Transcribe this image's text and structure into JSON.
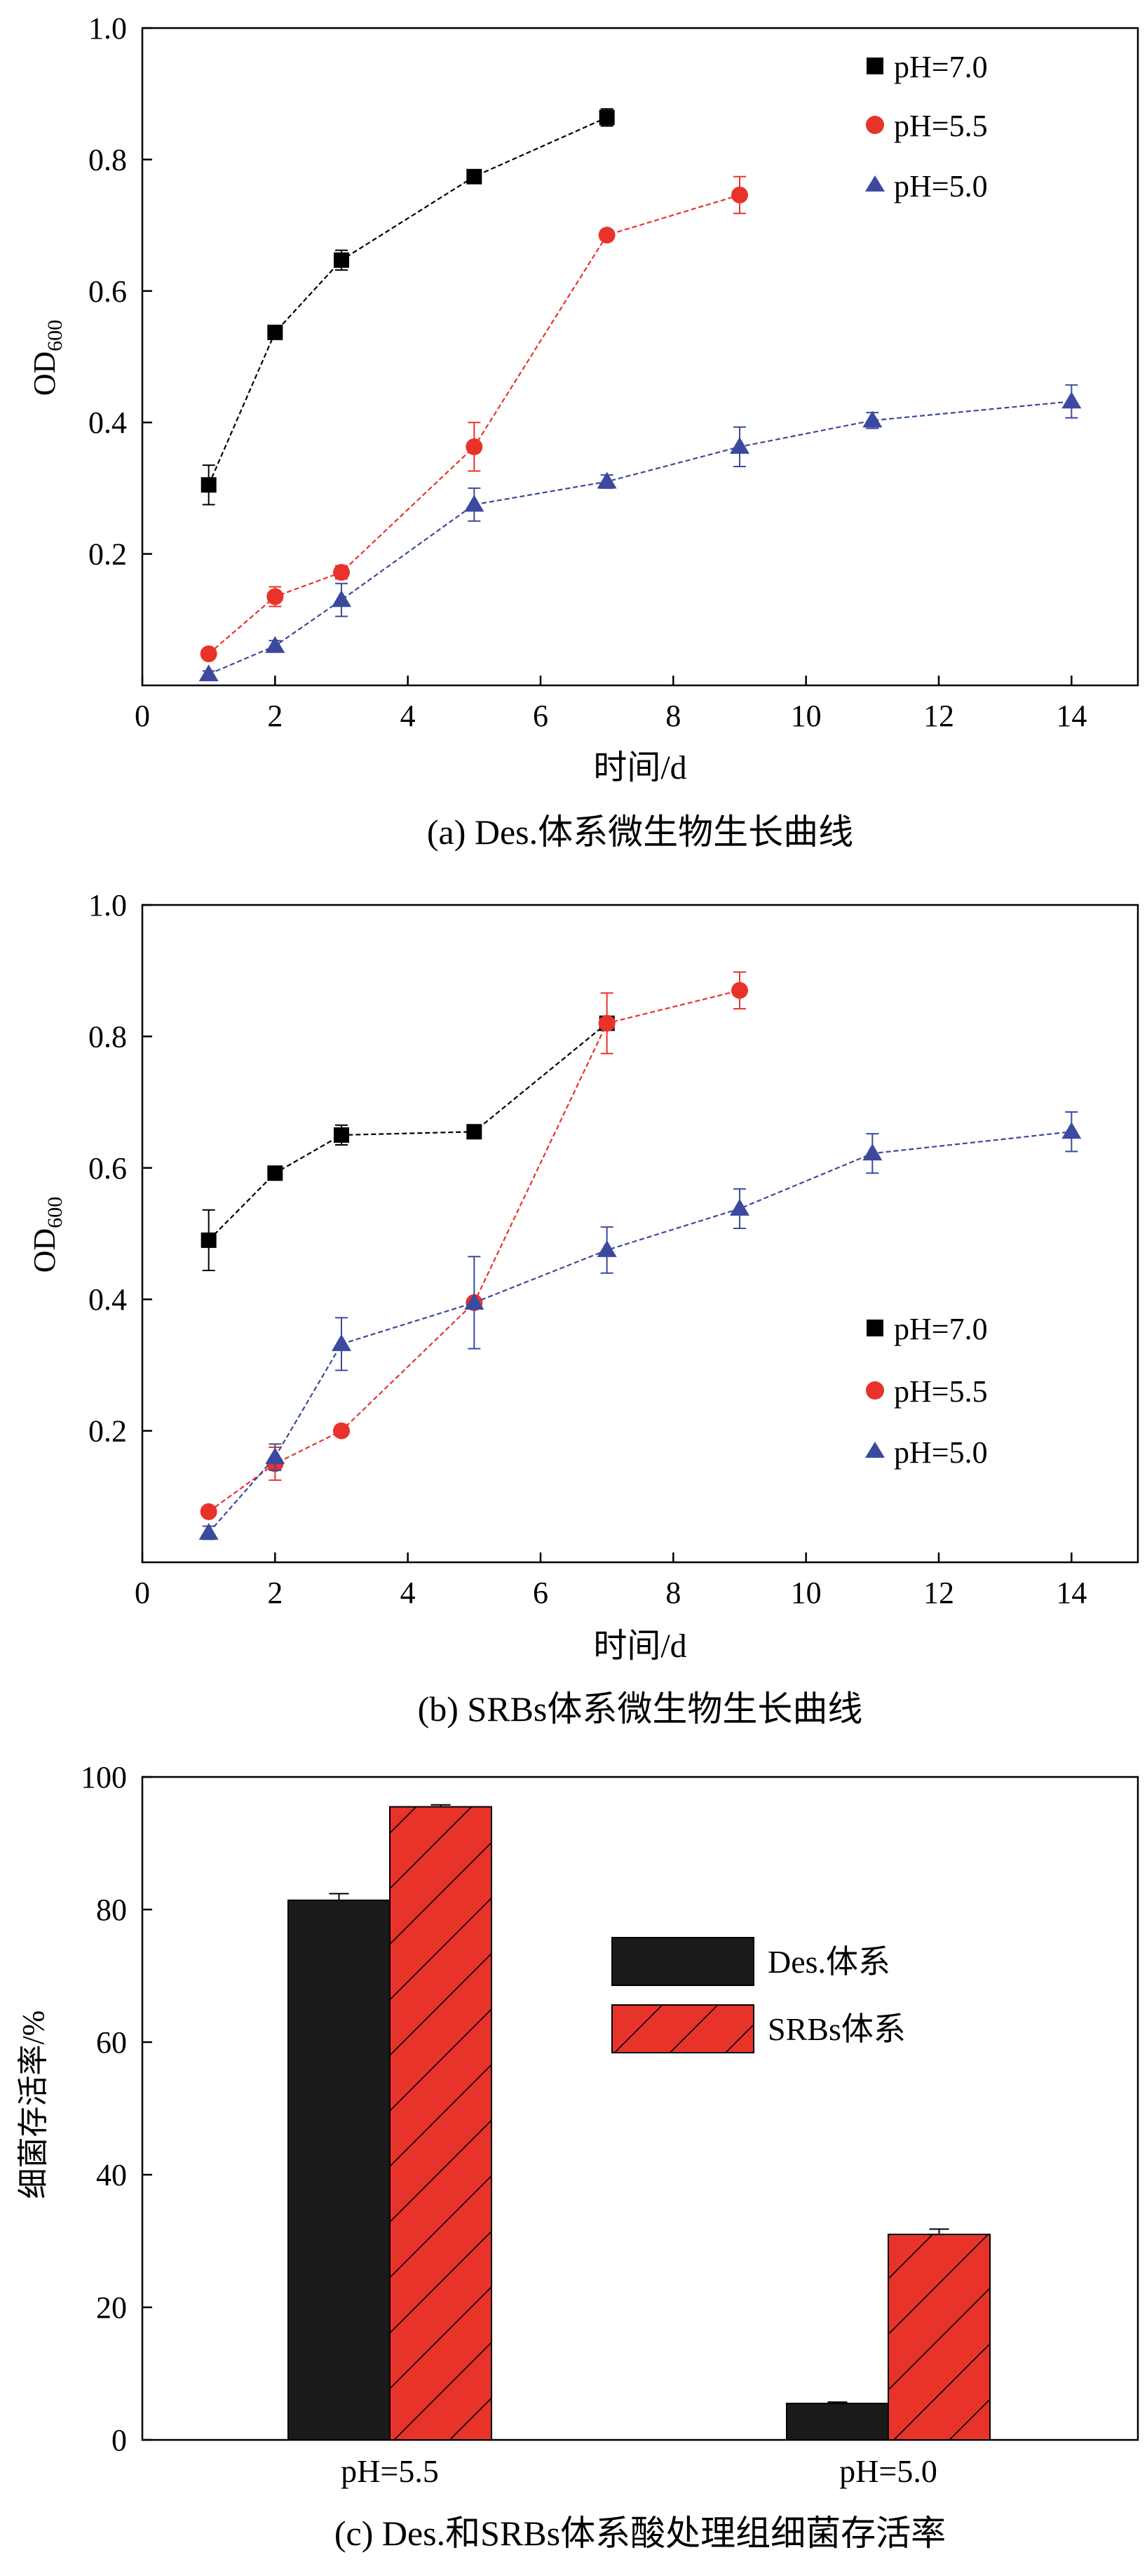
{
  "chart_data": [
    {
      "type": "line",
      "caption": "(a) Des.体系微生物生长曲线",
      "xlabel": "时间/d",
      "ylabel_main": "OD",
      "ylabel_sub": "600",
      "xlim": [
        0,
        15
      ],
      "ylim": [
        0,
        1.0
      ],
      "xticks": [
        0,
        2,
        4,
        6,
        8,
        10,
        12,
        14
      ],
      "xtick_labels": [
        "0",
        "2",
        "4",
        "6",
        "8",
        "10",
        "12",
        "14"
      ],
      "yticks": [
        0.2,
        0.4,
        0.6,
        0.8,
        1.0
      ],
      "ytick_labels": [
        "0.2",
        "0.4",
        "0.6",
        "0.8",
        "1.0"
      ],
      "legend_position": "top-right",
      "series": [
        {
          "name": "pH=7.0",
          "marker": "square",
          "color": "#000000",
          "x": [
            1,
            2,
            3,
            5,
            7
          ],
          "y": [
            0.305,
            0.537,
            0.647,
            0.774,
            0.864
          ],
          "err": [
            0.03,
            0.008,
            0.015,
            0.006,
            0.013
          ]
        },
        {
          "name": "pH=5.5",
          "marker": "circle",
          "color": "#e8332b",
          "x": [
            1,
            2,
            3,
            5,
            7,
            9
          ],
          "y": [
            0.048,
            0.135,
            0.172,
            0.363,
            0.685,
            0.746
          ],
          "err": [
            0.006,
            0.015,
            0.01,
            0.037,
            0.006,
            0.028
          ]
        },
        {
          "name": "pH=5.0",
          "marker": "triangle",
          "color": "#3b4a9e",
          "x": [
            1,
            2,
            3,
            5,
            7,
            9,
            11,
            14
          ],
          "y": [
            0.017,
            0.06,
            0.13,
            0.275,
            0.31,
            0.363,
            0.403,
            0.432
          ],
          "err": [
            0.005,
            0.008,
            0.025,
            0.025,
            0.01,
            0.03,
            0.012,
            0.025
          ]
        }
      ]
    },
    {
      "type": "line",
      "caption": "(b) SRBs体系微生物生长曲线",
      "xlabel": "时间/d",
      "ylabel_main": "OD",
      "ylabel_sub": "600",
      "xlim": [
        0,
        15
      ],
      "ylim": [
        0,
        1.0
      ],
      "xticks": [
        0,
        2,
        4,
        6,
        8,
        10,
        12,
        14
      ],
      "xtick_labels": [
        "0",
        "2",
        "4",
        "6",
        "8",
        "10",
        "12",
        "14"
      ],
      "yticks": [
        0.2,
        0.4,
        0.6,
        0.8,
        1.0
      ],
      "ytick_labels": [
        "0.2",
        "0.4",
        "0.6",
        "0.8",
        "1.0"
      ],
      "legend_position": "bottom-right",
      "series": [
        {
          "name": "pH=7.0",
          "marker": "square",
          "color": "#000000",
          "x": [
            1,
            2,
            3,
            5,
            7
          ],
          "y": [
            0.49,
            0.592,
            0.65,
            0.655,
            0.82
          ],
          "err": [
            0.046,
            0.006,
            0.015,
            0.01,
            0.01
          ]
        },
        {
          "name": "pH=5.5",
          "marker": "circle",
          "color": "#e8332b",
          "x": [
            1,
            2,
            3,
            5,
            7,
            9
          ],
          "y": [
            0.077,
            0.15,
            0.2,
            0.395,
            0.82,
            0.87
          ],
          "err": [
            0.006,
            0.025,
            0.008,
            0.008,
            0.046,
            0.028
          ]
        },
        {
          "name": "pH=5.0",
          "marker": "triangle",
          "color": "#3b4a9e",
          "x": [
            1,
            2,
            3,
            5,
            7,
            9,
            11,
            14
          ],
          "y": [
            0.045,
            0.16,
            0.332,
            0.395,
            0.475,
            0.538,
            0.622,
            0.655
          ],
          "err": [
            0.01,
            0.02,
            0.04,
            0.07,
            0.035,
            0.03,
            0.03,
            0.03
          ]
        }
      ]
    },
    {
      "type": "bar",
      "caption": "(c) Des.和SRBs体系酸处理组细菌存活率",
      "ylabel": "细菌存活率/%",
      "xlabel": "",
      "ylim": [
        0,
        100
      ],
      "yticks": [
        0,
        20,
        40,
        60,
        80,
        100
      ],
      "ytick_labels": [
        "0",
        "20",
        "40",
        "60",
        "80",
        "100"
      ],
      "categories": [
        "pH=5.5",
        "pH=5.0"
      ],
      "legend_position": "top-right",
      "series": [
        {
          "name": "Des.体系",
          "fill": "solid",
          "color": "#1a1a1a",
          "values": [
            81.4,
            5.5
          ],
          "err": [
            1.0,
            0.2
          ]
        },
        {
          "name": "SRBs体系",
          "fill": "hatched",
          "color": "#e8332b",
          "values": [
            95.5,
            31.0
          ],
          "err": [
            0.3,
            0.8
          ]
        }
      ]
    }
  ]
}
